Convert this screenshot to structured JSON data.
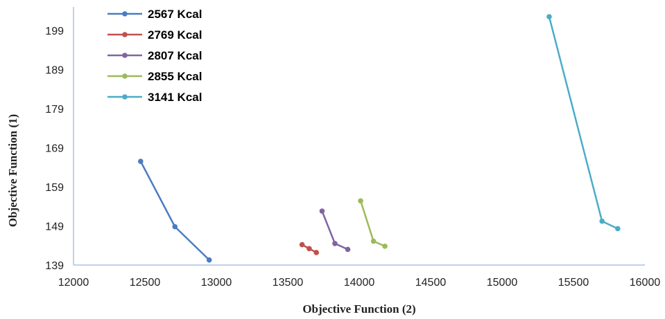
{
  "chart_data": {
    "type": "line",
    "xlabel": "Objective Function (2)",
    "ylabel": "Objective Function (1)",
    "xlim": [
      12000,
      16000
    ],
    "ylim": [
      139,
      205
    ],
    "x_ticks": [
      "12000",
      "12500",
      "13000",
      "13500",
      "14000",
      "14500",
      "15000",
      "15500",
      "16000"
    ],
    "y_ticks": [
      "139",
      "149",
      "159",
      "169",
      "179",
      "189",
      "199"
    ],
    "legend_position": "top-left",
    "grid": false,
    "series": [
      {
        "name": "2567 Kcal",
        "color": "#4a7cc1",
        "points": [
          [
            12470,
            165.5
          ],
          [
            12710,
            148.8
          ],
          [
            12950,
            140.3
          ]
        ]
      },
      {
        "name": "2769 Kcal",
        "color": "#c0504d",
        "points": [
          [
            13600,
            144.2
          ],
          [
            13650,
            143.2
          ],
          [
            13700,
            142.2
          ]
        ]
      },
      {
        "name": "2807 Kcal",
        "color": "#8064a2",
        "points": [
          [
            13740,
            152.8
          ],
          [
            13830,
            144.5
          ],
          [
            13920,
            143.0
          ]
        ]
      },
      {
        "name": "2855 Kcal",
        "color": "#9bbb59",
        "points": [
          [
            14010,
            155.4
          ],
          [
            14100,
            145.1
          ],
          [
            14180,
            143.8
          ]
        ]
      },
      {
        "name": "3141 Kcal",
        "color": "#4bacc6",
        "points": [
          [
            15330,
            202.5
          ],
          [
            15700,
            150.2
          ],
          [
            15810,
            148.3
          ]
        ]
      }
    ]
  }
}
